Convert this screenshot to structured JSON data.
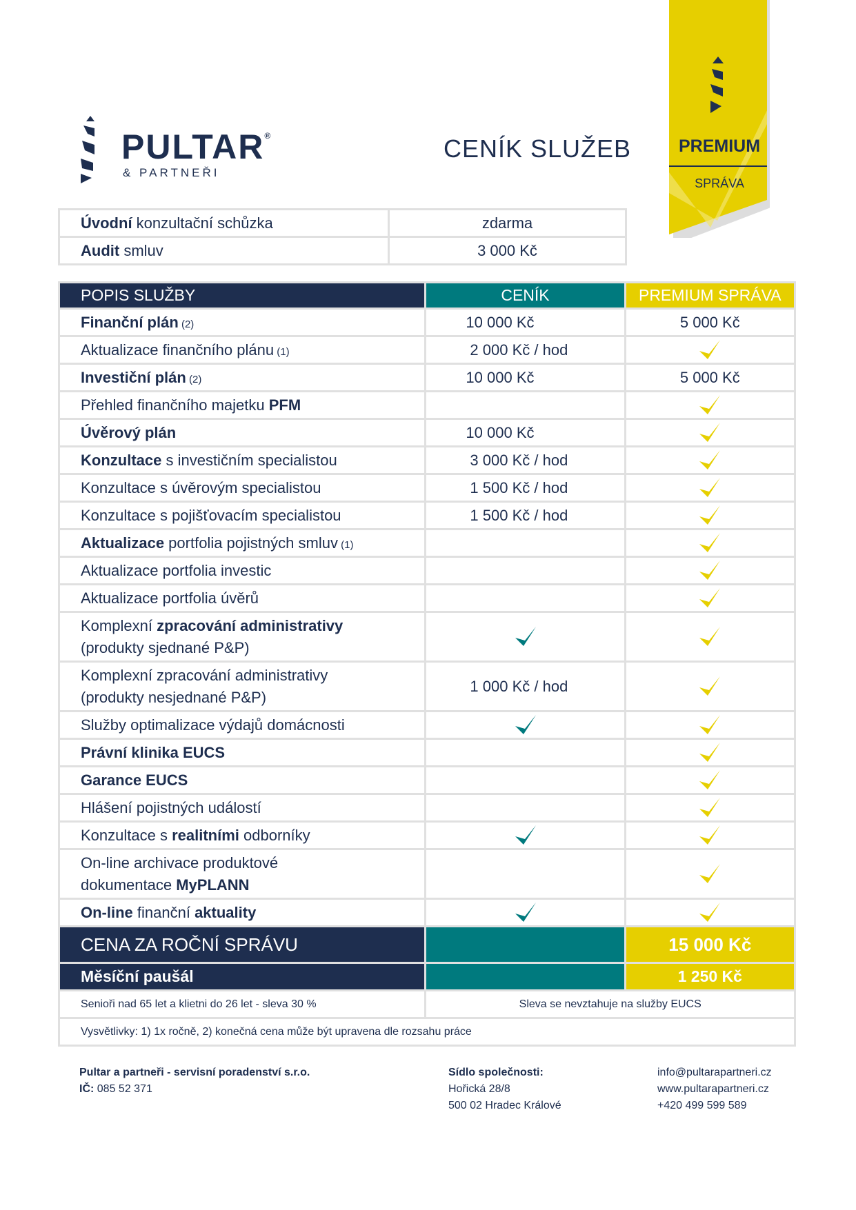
{
  "brand": {
    "name": "PULTAR",
    "registered": "®",
    "sub": "& PARTNEŘI"
  },
  "title": "CENÍK SLUŽEB",
  "ribbon": {
    "line1": "PREMIUM",
    "line2": "SPRÁVA"
  },
  "colors": {
    "navy": "#1e2e4f",
    "teal": "#007a7e",
    "yellow": "#e6cf00"
  },
  "intro": [
    {
      "label": [
        {
          "t": "Úvodní",
          "b": true
        },
        {
          "t": " konzultační schůzka"
        }
      ],
      "price": "zdarma"
    },
    {
      "label": [
        {
          "t": "Audit",
          "b": true
        },
        {
          "t": " smluv"
        }
      ],
      "price": "3 000 Kč"
    }
  ],
  "header": {
    "desc": "POPIS SLUŽBY",
    "cenik": "CENÍK",
    "premium": "PREMIUM SPRÁVA"
  },
  "rows": [
    {
      "lines": [
        [
          {
            "t": "Finanční plán",
            "b": true
          },
          {
            "t": " (2)",
            "s": true
          }
        ]
      ],
      "cenik": "10 000 Kč",
      "premium": "5 000 Kč"
    },
    {
      "lines": [
        [
          {
            "t": "Aktualizace finančního plánu"
          },
          {
            "t": " (1)",
            "s": true
          }
        ]
      ],
      "cenik": "2 000 Kč / hod",
      "premium_icon": "check-yellow"
    },
    {
      "lines": [
        [
          {
            "t": "Investiční plán",
            "b": true
          },
          {
            "t": " (2)",
            "s": true
          }
        ]
      ],
      "cenik": "10 000 Kč",
      "premium": "5 000 Kč"
    },
    {
      "lines": [
        [
          {
            "t": "Přehled finančního majetku "
          },
          {
            "t": "PFM",
            "b": true
          }
        ]
      ],
      "premium_icon": "check-yellow"
    },
    {
      "lines": [
        [
          {
            "t": "Úvěrový plán",
            "b": true
          }
        ]
      ],
      "cenik": "10 000 Kč",
      "premium_icon": "check-yellow"
    },
    {
      "lines": [
        [
          {
            "t": "Konzultace",
            "b": true
          },
          {
            "t": " s investičním specialistou"
          }
        ]
      ],
      "cenik": "3 000 Kč / hod",
      "premium_icon": "check-yellow"
    },
    {
      "lines": [
        [
          {
            "t": "Konzultace s úvěrovým specialistou"
          }
        ]
      ],
      "cenik": "1 500 Kč / hod",
      "premium_icon": "check-yellow"
    },
    {
      "lines": [
        [
          {
            "t": "Konzultace s pojišťovacím specialistou"
          }
        ]
      ],
      "cenik": "1 500 Kč / hod",
      "premium_icon": "check-yellow"
    },
    {
      "lines": [
        [
          {
            "t": "Aktualizace",
            "b": true
          },
          {
            "t": " portfolia pojistných smluv"
          },
          {
            "t": " (1)",
            "s": true
          }
        ]
      ],
      "premium_icon": "check-yellow"
    },
    {
      "lines": [
        [
          {
            "t": "Aktualizace portfolia investic"
          }
        ]
      ],
      "premium_icon": "check-yellow"
    },
    {
      "lines": [
        [
          {
            "t": "Aktualizace portfolia úvěrů"
          }
        ]
      ],
      "premium_icon": "check-yellow"
    },
    {
      "lines": [
        [
          {
            "t": "Komplexní "
          },
          {
            "t": "zpracování administrativy",
            "b": true
          }
        ],
        [
          {
            "t": "(produkty sjednané P&P)"
          }
        ]
      ],
      "cenik_icon": "check-teal",
      "premium_icon": "check-yellow"
    },
    {
      "lines": [
        [
          {
            "t": "Komplexní zpracování administrativy"
          }
        ],
        [
          {
            "t": "(produkty nesjednané P&P)"
          }
        ]
      ],
      "cenik": "1 000 Kč / hod",
      "premium_icon": "check-yellow"
    },
    {
      "lines": [
        [
          {
            "t": "Služby optimalizace výdajů domácnosti"
          }
        ]
      ],
      "cenik_icon": "check-teal",
      "premium_icon": "check-yellow"
    },
    {
      "lines": [
        [
          {
            "t": "Právní klinika EUCS",
            "b": true
          }
        ]
      ],
      "premium_icon": "check-yellow"
    },
    {
      "lines": [
        [
          {
            "t": "Garance EUCS",
            "b": true
          }
        ]
      ],
      "premium_icon": "check-yellow"
    },
    {
      "lines": [
        [
          {
            "t": "Hlášení pojistných událostí"
          }
        ]
      ],
      "premium_icon": "check-yellow"
    },
    {
      "lines": [
        [
          {
            "t": "Konzultace s "
          },
          {
            "t": "realitními",
            "b": true
          },
          {
            "t": " odborníky"
          }
        ]
      ],
      "cenik_icon": "check-teal",
      "premium_icon": "check-yellow"
    },
    {
      "lines": [
        [
          {
            "t": "On-line archivace produktové"
          }
        ],
        [
          {
            "t": "dokumentace "
          },
          {
            "t": "MyPLANN",
            "b": true
          }
        ]
      ],
      "premium_icon": "check-yellow"
    },
    {
      "lines": [
        [
          {
            "t": "On-line",
            "b": true
          },
          {
            "t": " finanční "
          },
          {
            "t": "aktuality",
            "b": true
          }
        ]
      ],
      "cenik_icon": "check-teal",
      "premium_icon": "check-yellow"
    }
  ],
  "totals": {
    "annual_label": "CENA ZA ROČNÍ SPRÁVU",
    "annual_premium": "15 000 Kč",
    "monthly_label": "Měsíční paušál",
    "monthly_premium": "1 250 Kč"
  },
  "notes": {
    "discount": "Senioři nad 65 let a klietni do 26 let - sleva 30 %",
    "eucs": "Sleva se nevztahuje na služby EUCS",
    "legend": "Vysvětlivky: 1) 1x ročně, 2) konečná cena může být upravena dle rozsahu práce"
  },
  "footer": {
    "company": "Pultar a partneři - servisní poradenství s.r.o.",
    "ic_label": "IČ:",
    "ic": " 085 52 371",
    "seat_label": "Sídlo společnosti:",
    "street": "Hořická 28/8",
    "city": "500 02 Hradec Králové",
    "email": "info@pultarapartneri.cz",
    "web": "www.pultarapartneri.cz",
    "phone": "+420 499 599 589"
  }
}
